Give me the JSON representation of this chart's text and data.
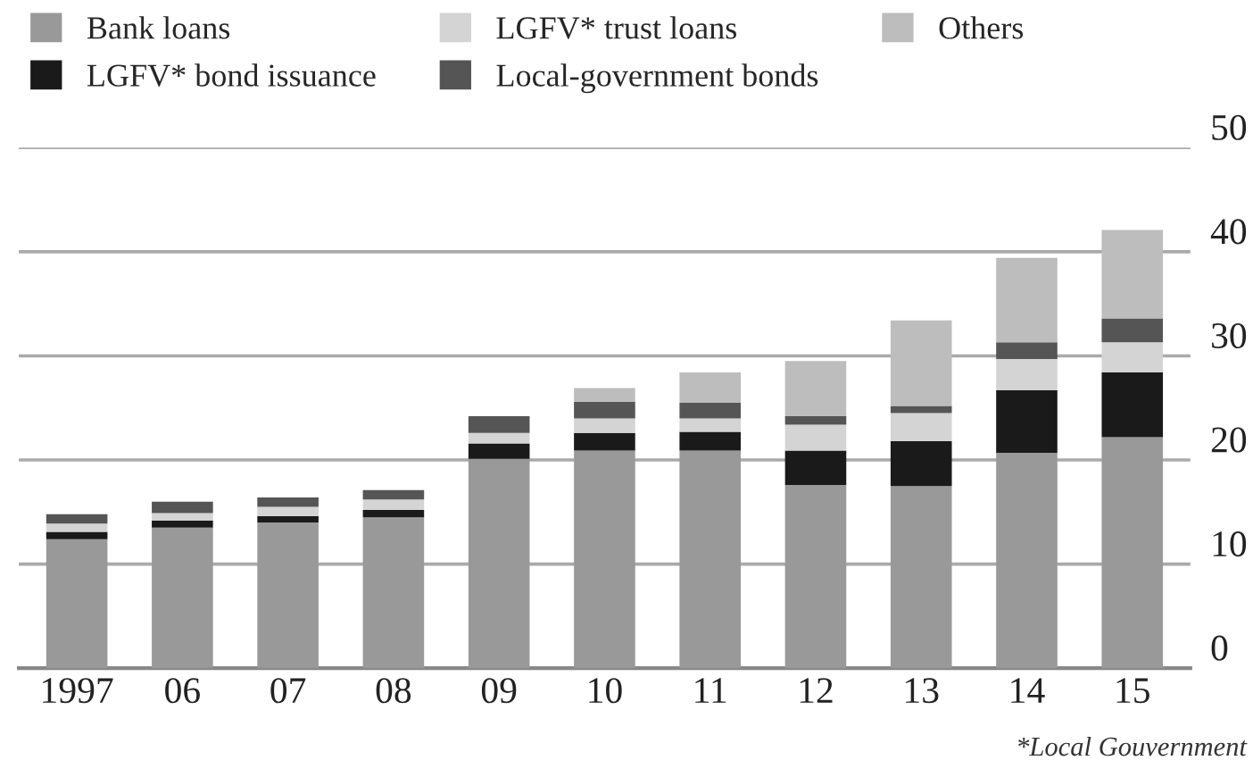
{
  "chart_data": {
    "type": "bar",
    "stacked": true,
    "categories": [
      "1997",
      "06",
      "07",
      "08",
      "09",
      "10",
      "11",
      "12",
      "13",
      "14",
      "15"
    ],
    "series": [
      {
        "name": "Bank loans",
        "color": "#999999",
        "values": [
          12.4,
          13.5,
          14.0,
          14.5,
          20.1,
          20.9,
          20.9,
          17.6,
          17.5,
          20.7,
          22.2
        ]
      },
      {
        "name": "LGFV* bond issuance",
        "color": "#1a1a1a",
        "values": [
          0.7,
          0.7,
          0.6,
          0.7,
          1.5,
          1.7,
          1.8,
          3.3,
          4.3,
          6.0,
          6.2
        ]
      },
      {
        "name": "LGFV* trust loans",
        "color": "#d4d4d4",
        "values": [
          0.8,
          0.7,
          0.9,
          1.0,
          1.0,
          1.4,
          1.3,
          2.5,
          2.7,
          3.0,
          2.9
        ]
      },
      {
        "name": "Local-government bonds",
        "color": "#555555",
        "values": [
          0.9,
          1.1,
          0.9,
          0.9,
          1.6,
          1.6,
          1.5,
          0.8,
          0.7,
          1.6,
          2.3
        ]
      },
      {
        "name": "Others",
        "color": "#bdbdbd",
        "values": [
          null,
          null,
          null,
          null,
          null,
          1.3,
          2.9,
          5.3,
          8.2,
          8.1,
          8.5
        ]
      }
    ],
    "ylim": [
      0,
      50
    ],
    "yticks": [
      0,
      10,
      20,
      30,
      40,
      50
    ],
    "grid": "y",
    "legend": "top left",
    "annotations": [
      "*Local Gouvernment"
    ]
  }
}
